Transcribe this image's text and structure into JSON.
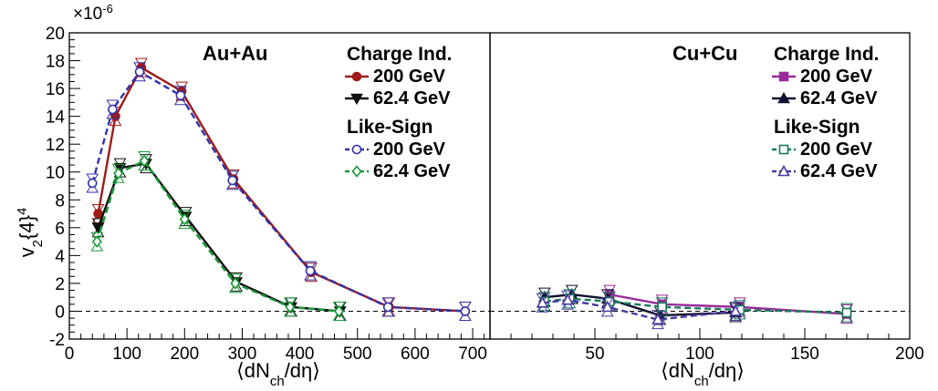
{
  "figure": {
    "y_axis_label_main": "v",
    "y_axis_label_sub": "2",
    "y_axis_label_rest": "{4}",
    "y_axis_label_sup": "4",
    "y_exponent_base": "×10",
    "y_exponent_power": "-6"
  },
  "chart_data": [
    {
      "type": "line",
      "panel_label": "Au+Au",
      "xlabel": "⟨dN",
      "xlabel_sub": "ch",
      "xlabel_tail": "/dη⟩",
      "ylabel": "v2{4}^4",
      "y_scale": "×10^-6",
      "xlim": [
        0,
        730
      ],
      "ylim": [
        -2,
        20
      ],
      "x_ticks": [
        0,
        100,
        200,
        300,
        400,
        500,
        600,
        700
      ],
      "y_ticks": [
        -2,
        0,
        2,
        4,
        6,
        8,
        10,
        12,
        14,
        16,
        18,
        20
      ],
      "zero_line": "dashed",
      "legend": {
        "group1_title": "Charge Ind.",
        "group2_title": "Like-Sign",
        "placement": "top-right"
      },
      "series": [
        {
          "name": "200 GeV",
          "group": "Charge Ind.",
          "color": "#9e1b1b",
          "marker": "filled-circle",
          "dash": false,
          "x": [
            50,
            80,
            125,
            195,
            285,
            420,
            555,
            687
          ],
          "y": [
            7.0,
            14.0,
            17.5,
            15.8,
            9.5,
            2.8,
            0.3,
            0.0
          ]
        },
        {
          "name": "62.4 GeV",
          "group": "Charge Ind.",
          "color": "#111111",
          "marker": "filled-down-triangle",
          "dash": false,
          "x": [
            50,
            88,
            133,
            202,
            290,
            385,
            470
          ],
          "y": [
            6.0,
            10.3,
            10.6,
            6.8,
            2.1,
            0.3,
            0.0
          ]
        },
        {
          "name": "200 GeV",
          "group": "Like-Sign",
          "color": "#3333aa",
          "marker": "open-circle",
          "dash": true,
          "x": [
            40,
            75,
            122,
            193,
            283,
            418,
            553,
            687
          ],
          "y": [
            9.2,
            14.5,
            17.2,
            15.5,
            9.4,
            2.9,
            0.3,
            0.0
          ]
        },
        {
          "name": "62.4 GeV",
          "group": "Like-Sign",
          "color": "#1a9a3a",
          "marker": "open-diamond",
          "dash": true,
          "x": [
            48,
            85,
            130,
            200,
            288,
            383,
            468
          ],
          "y": [
            5.0,
            9.9,
            10.8,
            6.6,
            2.0,
            0.3,
            0.0
          ]
        }
      ]
    },
    {
      "type": "line",
      "panel_label": "Cu+Cu",
      "xlabel": "⟨dN",
      "xlabel_sub": "ch",
      "xlabel_tail": "/dη⟩",
      "xlim": [
        0,
        200
      ],
      "ylim": [
        -2,
        20
      ],
      "x_ticks": [
        50,
        100,
        150,
        200
      ],
      "zero_line": "dashed",
      "legend": {
        "group1_title": "Charge Ind.",
        "group2_title": "Like-Sign",
        "placement": "top-right"
      },
      "series": [
        {
          "name": "200 GeV",
          "group": "Charge Ind.",
          "color": "#9a2a9a",
          "marker": "filled-square",
          "dash": false,
          "x": [
            57,
            82,
            119,
            170
          ],
          "y": [
            1.2,
            0.5,
            0.3,
            -0.2
          ]
        },
        {
          "name": "62.4 GeV",
          "group": "Charge Ind.",
          "color": "#101030",
          "marker": "filled-up-triangle",
          "dash": false,
          "x": [
            26,
            39,
            56,
            81,
            117
          ],
          "y": [
            1.0,
            1.2,
            0.9,
            -0.3,
            -0.1
          ]
        },
        {
          "name": "200 GeV",
          "group": "Like-Sign",
          "color": "#1a7a5a",
          "marker": "open-square",
          "dash": true,
          "x": [
            26,
            38,
            57,
            82,
            119,
            170
          ],
          "y": [
            0.7,
            0.9,
            0.7,
            0.3,
            0.1,
            -0.1
          ]
        },
        {
          "name": "62.4 GeV",
          "group": "Like-Sign",
          "color": "#4a3aa0",
          "marker": "open-up-triangle",
          "dash": true,
          "x": [
            25,
            37,
            56,
            80,
            117
          ],
          "y": [
            0.6,
            0.8,
            0.3,
            -0.6,
            0.0
          ]
        }
      ]
    }
  ]
}
